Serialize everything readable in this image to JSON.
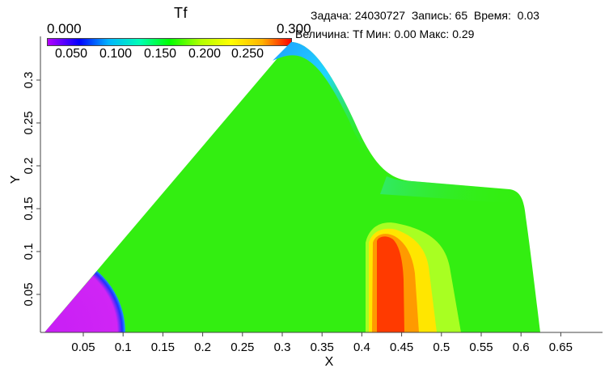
{
  "info": {
    "line1": "Задача: 24030727  Запись: 65  Время:  0.03",
    "line2": "Величина: Tf Мин: 0.00 Макс: 0.29"
  },
  "legend": {
    "title": "Tf",
    "min_label": "0.000",
    "max_label": "0.300",
    "tick_labels": [
      "0.050",
      "0.100",
      "0.150",
      "0.200",
      "0.250"
    ],
    "colors": [
      "#b400ff",
      "#0000ff",
      "#00b4ff",
      "#00ffb4",
      "#00ff00",
      "#b4ff00",
      "#ffff00",
      "#ffb400",
      "#ff0000"
    ]
  },
  "axes": {
    "xlabel": "X",
    "ylabel": "Y",
    "x_ticks": [
      "0.05",
      "0.1",
      "0.15",
      "0.2",
      "0.25",
      "0.3",
      "0.35",
      "0.4",
      "0.45",
      "0.5",
      "0.55",
      "0.6",
      "0.65"
    ],
    "y_ticks": [
      "0.05",
      "0.1",
      "0.15",
      "0.2",
      "0.25",
      "0.3"
    ]
  },
  "colors": {
    "field_green": "#33ee11",
    "magenta_core": "#d21ef5",
    "core_ring": "#2040ff",
    "cool_blue": "#1eb4ff",
    "hot_red": "#ff3000",
    "hot_orange": "#ff8800",
    "hot_yellow": "#ffe600",
    "warm_yellowgreen": "#a8ff22"
  }
}
